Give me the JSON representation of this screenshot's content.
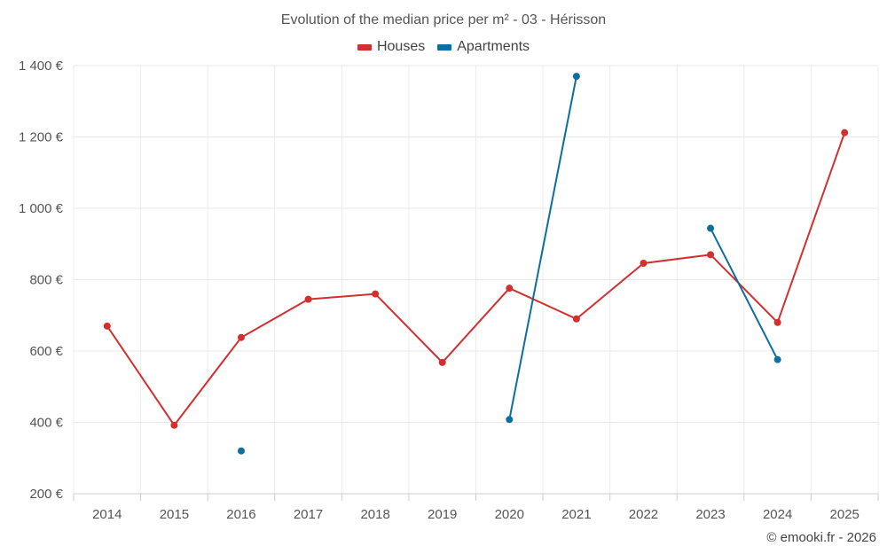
{
  "chart_data": {
    "type": "line",
    "title": "Evolution of the median price per m² - 03 - Hérisson",
    "categories": [
      "2014",
      "2015",
      "2016",
      "2017",
      "2018",
      "2019",
      "2020",
      "2021",
      "2022",
      "2023",
      "2024",
      "2025"
    ],
    "ylim": [
      200,
      1400
    ],
    "yticks": [
      200,
      400,
      600,
      800,
      1000,
      1200,
      1400
    ],
    "ytick_labels": [
      "200 €",
      "400 €",
      "600 €",
      "800 €",
      "1 000 €",
      "1 200 €",
      "1 400 €"
    ],
    "grid": true,
    "legend_position": "top-center",
    "series": [
      {
        "name": "Houses",
        "color": "#d32f2f",
        "values": [
          670,
          392,
          638,
          745,
          760,
          568,
          776,
          690,
          846,
          870,
          680,
          1212
        ]
      },
      {
        "name": "Apartments",
        "color": "#0d6ea0",
        "values": [
          null,
          null,
          320,
          null,
          null,
          null,
          408,
          1370,
          null,
          944,
          576,
          null
        ]
      }
    ]
  },
  "credit": "© emooki.fr - 2026"
}
